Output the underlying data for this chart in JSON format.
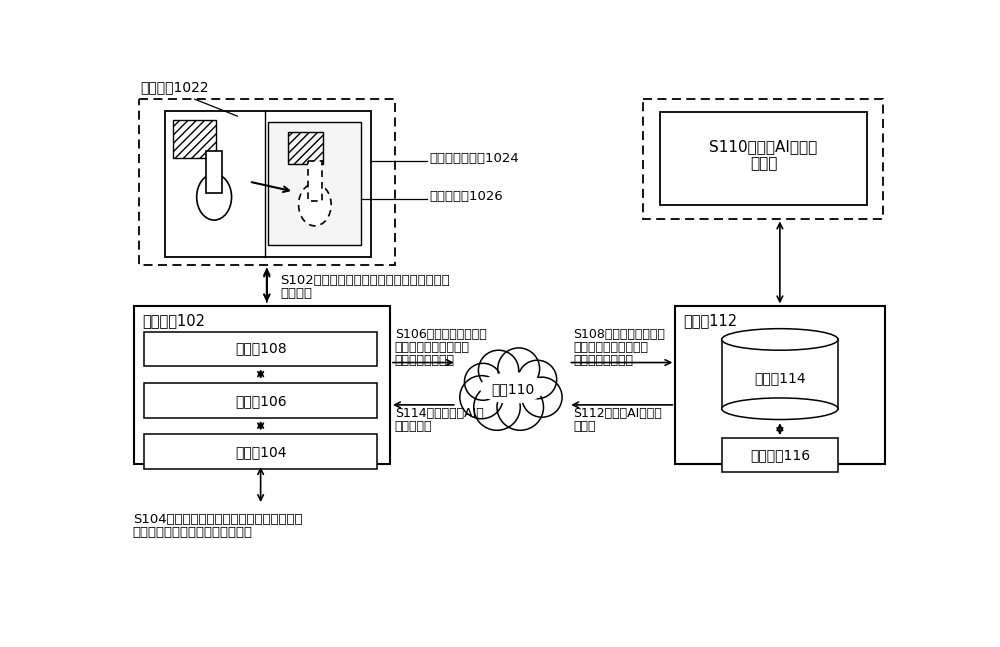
{
  "bg_color": "#ffffff",
  "text_color": "#000000",
  "labels": {
    "work_component": "工作组件1022",
    "workflow_ui": "工作流配置界面1024",
    "workflow_template_label": "工作流模板1026",
    "user_device": "用户设备102",
    "display": "显示器108",
    "processor": "处理器106",
    "storage": "存储器104",
    "network": "网络110",
    "server": "服务器112",
    "database": "数据库114",
    "engine": "处理引擎116",
    "s102_line1": "S102，获取在工作流配置界面中触发的添加",
    "s102_line2": "操作指令",
    "s104_line1": "S104，获取工作流模板中全部工作组件的组",
    "s104_line2": "件属性信息和组件之间的运行关系",
    "s106_line1": "S106，发送添加操作指",
    "s106_line2": "令、组件属性信息和组",
    "s106_line3": "件之间的运行关系",
    "s108_line1": "S108，发送添加操作指",
    "s108_line2": "令、组件属性信息和组",
    "s108_line3": "件之间的运行关系",
    "s110_line1": "S110，生成AI解决方",
    "s110_line2": "案模板",
    "s112_line1": "S112，发送AI解决方",
    "s112_line2": "案模板",
    "s114_line1": "S114，发送发送AI解",
    "s114_line2": "决方案模板"
  }
}
